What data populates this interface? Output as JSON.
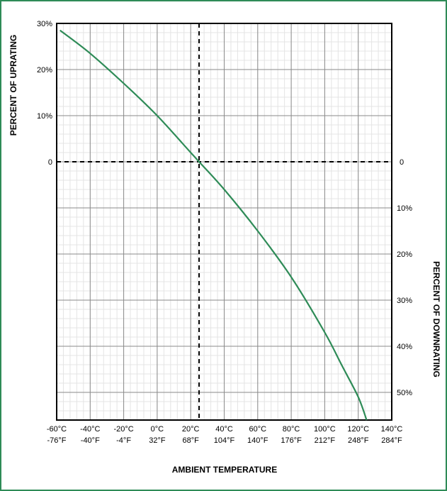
{
  "chart_data": {
    "type": "line",
    "title": "",
    "xlabel": "AMBIENT TEMPERATURE",
    "ylabel_left": "PERCENT OF UPRATING",
    "ylabel_right": "PERCENT OF DOWNRATING",
    "xlim": [
      -60,
      140
    ],
    "ylim": [
      -56,
      30
    ],
    "x_ticks": [
      {
        "value": -60,
        "c": "-60°C",
        "f": "-76°F"
      },
      {
        "value": -40,
        "c": "-40°C",
        "f": "-40°F"
      },
      {
        "value": -20,
        "c": "-20°C",
        "f": "-4°F"
      },
      {
        "value": 0,
        "c": "0°C",
        "f": "32°F"
      },
      {
        "value": 20,
        "c": "20°C",
        "f": "68°F"
      },
      {
        "value": 40,
        "c": "40°C",
        "f": "104°F"
      },
      {
        "value": 60,
        "c": "60°C",
        "f": "140°F"
      },
      {
        "value": 80,
        "c": "80°C",
        "f": "176°F"
      },
      {
        "value": 100,
        "c": "100°C",
        "f": "212°F"
      },
      {
        "value": 120,
        "c": "120°C",
        "f": "248°F"
      },
      {
        "value": 140,
        "c": "140°C",
        "f": "284°F"
      }
    ],
    "y_ticks_left": [
      {
        "value": 30,
        "label": "30%"
      },
      {
        "value": 20,
        "label": "20%"
      },
      {
        "value": 10,
        "label": "10%"
      },
      {
        "value": 0,
        "label": "0"
      }
    ],
    "y_ticks_right": [
      {
        "value": 0,
        "label": "0"
      },
      {
        "value": -10,
        "label": "10%"
      },
      {
        "value": -20,
        "label": "20%"
      },
      {
        "value": -30,
        "label": "30%"
      },
      {
        "value": -40,
        "label": "40%"
      },
      {
        "value": -50,
        "label": "50%"
      }
    ],
    "reference_lines": {
      "x": 25,
      "y": 0
    },
    "series": [
      {
        "x": [
          -58,
          -40,
          -20,
          0,
          20,
          25,
          40,
          60,
          80,
          100,
          110,
          120,
          125
        ],
        "y": [
          28.5,
          23.5,
          17,
          10,
          2,
          0,
          -6,
          -15,
          -25,
          -37,
          -44,
          -51,
          -56
        ],
        "color": "#2e8b57"
      }
    ],
    "grid": true
  }
}
